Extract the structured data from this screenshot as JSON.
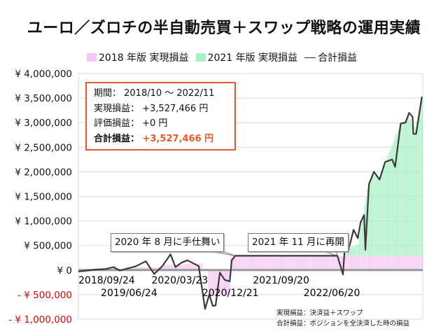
{
  "chart_data": {
    "type": "bar+line",
    "title": "ユーロ／ズロチの半自動売買＋スワップ戦略の運用実績",
    "legend": [
      {
        "name": "2018 年版 実現損益",
        "color": "#f7c6f2",
        "kind": "bar"
      },
      {
        "name": "2021 年版 実現損益",
        "color": "#a6f0c4",
        "kind": "bar"
      },
      {
        "name": "合計損益",
        "color": "#3a3a3a",
        "kind": "line"
      }
    ],
    "legend_placement": "top",
    "ylim": [
      -1000000,
      4000000
    ],
    "yticks": [
      4000000,
      3500000,
      3000000,
      2500000,
      2000000,
      1500000,
      1000000,
      500000,
      0,
      -500000,
      -1000000
    ],
    "ytick_labels": [
      "¥ 4,000,000",
      "¥ 3,500,000",
      "¥ 3,000,000",
      "¥ 2,500,000",
      "¥ 2,000,000",
      "¥ 1,500,000",
      "¥ 1,000,000",
      "¥ 500,000",
      "¥ 0",
      "- ¥ 500,000",
      "- ¥ 1,000,000"
    ],
    "negative_label_color": "#e00000",
    "xlim": [
      "2018-09-24",
      "2023-10-23"
    ],
    "xticks": [
      "2018/09/24",
      "2019/06/24",
      "2020/03/23",
      "2020/12/21",
      "2021/09/20",
      "2022/06/20"
    ],
    "grid": true,
    "series_2018": [
      [
        "2018-09-24",
        0
      ],
      [
        "2019-06-03",
        60000
      ],
      [
        "2019-12-30",
        110000
      ],
      [
        "2020-04-20",
        130000
      ],
      [
        "2020-07-27",
        0
      ],
      [
        "2020-08-24",
        -500000
      ],
      [
        "2020-12-21",
        290000
      ]
    ],
    "series_2021": [
      [
        "2018-09-24",
        0
      ],
      [
        "2022-08-29",
        150000
      ],
      [
        "2022-10-10",
        180000
      ],
      [
        "2022-11-07",
        230000
      ],
      [
        "2022-12-26",
        1350000
      ],
      [
        "2023-01-23",
        1650000
      ],
      [
        "2023-03-06",
        1600000
      ],
      [
        "2023-04-03",
        1900000
      ],
      [
        "2023-06-19",
        2650000
      ],
      [
        "2023-08-07",
        2850000
      ],
      [
        "2023-09-04",
        2500000
      ],
      [
        "2023-10-16",
        3237466
      ]
    ],
    "total_line": [
      [
        "2018-09-24",
        -30000
      ],
      [
        "2018-11-12",
        -10000
      ],
      [
        "2018-12-24",
        10000
      ],
      [
        "2019-02-15",
        20000
      ],
      [
        "2019-04-01",
        60000
      ],
      [
        "2019-05-06",
        -10000
      ],
      [
        "2019-06-24",
        40000
      ],
      [
        "2019-08-01",
        80000
      ],
      [
        "2019-09-22",
        180000
      ],
      [
        "2019-11-06",
        -80000
      ],
      [
        "2019-12-20",
        80000
      ],
      [
        "2020-02-02",
        320000
      ],
      [
        "2020-02-29",
        60000
      ],
      [
        "2020-04-01",
        150000
      ],
      [
        "2020-05-03",
        200000
      ],
      [
        "2020-06-08",
        130000
      ],
      [
        "2020-07-03",
        80000
      ],
      [
        "2020-08-06",
        -790000
      ],
      [
        "2020-08-29",
        -500000
      ],
      [
        "2020-09-17",
        -730000
      ],
      [
        "2020-10-02",
        -720000
      ],
      [
        "2020-10-25",
        -50000
      ],
      [
        "2020-11-20",
        -200000
      ],
      [
        "2020-12-17",
        -230000
      ],
      [
        "2020-12-28",
        200000
      ],
      [
        "2021-01-16",
        290000
      ],
      [
        "2022-07-20",
        290000
      ],
      [
        "2022-08-19",
        -90000
      ],
      [
        "2022-08-30",
        540000
      ],
      [
        "2022-09-18",
        410000
      ],
      [
        "2022-10-15",
        820000
      ],
      [
        "2022-11-07",
        650000
      ],
      [
        "2022-11-22",
        970000
      ],
      [
        "2022-12-11",
        1120000
      ],
      [
        "2022-12-18",
        410000
      ],
      [
        "2023-01-06",
        1750000
      ],
      [
        "2023-02-02",
        2000000
      ],
      [
        "2023-03-04",
        1840000
      ],
      [
        "2023-04-03",
        2200000
      ],
      [
        "2023-05-11",
        2250000
      ],
      [
        "2023-05-27",
        2100000
      ],
      [
        "2023-06-26",
        2980000
      ],
      [
        "2023-07-22",
        3000000
      ],
      [
        "2023-08-10",
        3200000
      ],
      [
        "2023-08-29",
        3120000
      ],
      [
        "2023-09-02",
        2770000
      ],
      [
        "2023-09-17",
        2770000
      ],
      [
        "2023-10-18",
        3527466
      ]
    ],
    "annotations": [
      {
        "text": "2020 年 8 月に手仕舞い"
      },
      {
        "text": "2021 年 11 月に再開"
      }
    ]
  },
  "info_box": {
    "period": "期間： 2018/10 ～ 2022/11",
    "realized": "実現損益： +3,527,466 円",
    "unrealized": "評価損益： +0 円",
    "total_label": "合計損益：",
    "total_value": "+3,527,466 円",
    "total_color": "#e8572a"
  },
  "notes": {
    "line1": "実現損益：決済益＋スワップ",
    "line2": "合計損益：ポジションを全決済した時の損益"
  }
}
